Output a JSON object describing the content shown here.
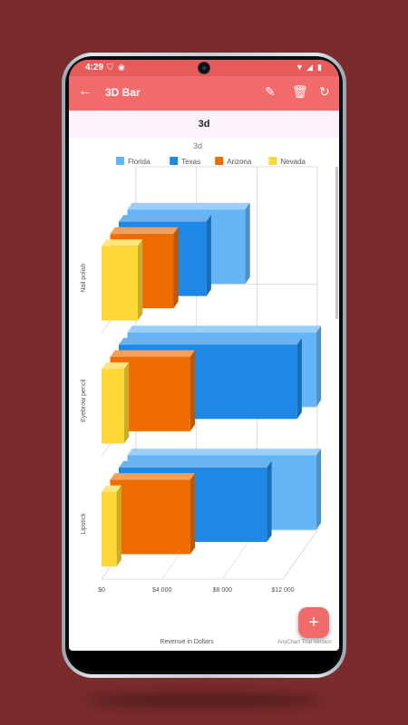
{
  "status_bar": {
    "time": "4:29",
    "icons": [
      "shield-icon",
      "notification-icon",
      "wifi-icon",
      "signal-icon",
      "battery-icon"
    ]
  },
  "app_bar": {
    "title": "3D Bar",
    "actions": [
      "edit-icon",
      "delete-icon",
      "refresh-icon"
    ]
  },
  "subheader": {
    "title": "3d"
  },
  "fab_label": "+",
  "credits": "AnyChart Trial Version",
  "colors": {
    "app_bar": "#f26b6b",
    "status_bar": "#e85b5b",
    "background": "#7a2b2b"
  },
  "chart_data": {
    "type": "bar",
    "orientation": "horizontal",
    "mode": "3d",
    "title": "3d",
    "xlabel": "",
    "ylabel": "Revenue in Dollars",
    "categories": [
      "Nail polish",
      "Eyebrow pencil",
      "Lipstick"
    ],
    "series": [
      {
        "name": "Florida",
        "color": "#64b5f6",
        "values": [
          7800,
          12500,
          12500
        ]
      },
      {
        "name": "Texas",
        "color": "#1e88e5",
        "values": [
          5800,
          11800,
          9800
        ]
      },
      {
        "name": "Arizona",
        "color": "#ef6c00",
        "values": [
          4200,
          5300,
          5300
        ]
      },
      {
        "name": "Nevada",
        "color": "#fdd835",
        "values": [
          2400,
          1500,
          1000
        ]
      }
    ],
    "ticks": [
      "$0",
      "$4 000",
      "$8 000",
      "$12 000"
    ],
    "xlim": [
      0,
      12000
    ],
    "grid": true,
    "legend_position": "top"
  }
}
